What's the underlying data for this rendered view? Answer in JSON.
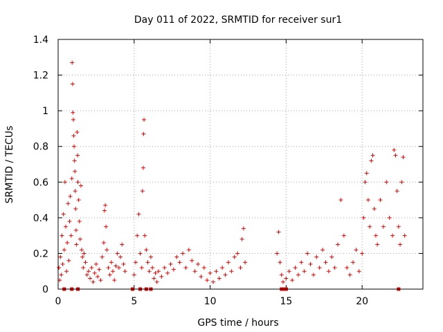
{
  "chart_data": {
    "type": "scatter",
    "title": "Day 011 of 2022, SRMTID for receiver sur1",
    "xlabel": "GPS time / hours",
    "ylabel": "SRMTID / TECUs",
    "xlim": [
      0,
      24
    ],
    "ylim": [
      0,
      1.4
    ],
    "xticks": [
      0,
      5,
      10,
      15,
      20
    ],
    "yticks": [
      0,
      0.2,
      0.4,
      0.6,
      0.8,
      1,
      1.2,
      1.4
    ],
    "xtick_labels": [
      "0",
      "5",
      "10",
      "15",
      "20"
    ],
    "ytick_labels": [
      "0",
      "0.2",
      "0.4",
      "0.6",
      "0.8",
      "1",
      "1.2",
      "1.4"
    ],
    "grid": true,
    "marker": "+",
    "color": "#e00000",
    "series": [
      {
        "name": "SRMTID",
        "points": [
          [
            0.05,
            0.12
          ],
          [
            0.1,
            0.05
          ],
          [
            0.15,
            0.18
          ],
          [
            0.2,
            0.08
          ],
          [
            0.25,
            0.3
          ],
          [
            0.3,
            0.14
          ],
          [
            0.35,
            0.42
          ],
          [
            0.4,
            0.22
          ],
          [
            0.45,
            0.6
          ],
          [
            0.5,
            0.35
          ],
          [
            0.55,
            0.1
          ],
          [
            0.6,
            0.26
          ],
          [
            0.65,
            0.48
          ],
          [
            0.7,
            0.16
          ],
          [
            0.75,
            0.38
          ],
          [
            0.8,
            0.52
          ],
          [
            0.85,
            0.3
          ],
          [
            0.9,
            0.62
          ],
          [
            0.92,
            1.27
          ],
          [
            0.95,
            1.15
          ],
          [
            0.97,
            0.99
          ],
          [
            1.0,
            0.95
          ],
          [
            1.02,
            0.86
          ],
          [
            1.05,
            0.8
          ],
          [
            1.08,
            0.72
          ],
          [
            1.1,
            0.66
          ],
          [
            1.12,
            0.55
          ],
          [
            1.15,
            0.45
          ],
          [
            1.18,
            0.33
          ],
          [
            1.2,
            0.25
          ],
          [
            1.25,
            0.88
          ],
          [
            1.28,
            0.75
          ],
          [
            1.3,
            0.6
          ],
          [
            1.35,
            0.5
          ],
          [
            1.4,
            0.38
          ],
          [
            1.45,
            0.28
          ],
          [
            1.5,
            0.58
          ],
          [
            1.55,
            0.22
          ],
          [
            1.6,
            0.18
          ],
          [
            1.65,
            0.12
          ],
          [
            1.7,
            0.2
          ],
          [
            1.8,
            0.15
          ],
          [
            1.9,
            0.08
          ],
          [
            2.0,
            0.1
          ],
          [
            2.1,
            0.06
          ],
          [
            2.2,
            0.12
          ],
          [
            2.3,
            0.04
          ],
          [
            2.4,
            0.09
          ],
          [
            2.5,
            0.14
          ],
          [
            2.6,
            0.07
          ],
          [
            2.7,
            0.11
          ],
          [
            2.8,
            0.05
          ],
          [
            2.9,
            0.18
          ],
          [
            3.0,
            0.26
          ],
          [
            3.05,
            0.44
          ],
          [
            3.1,
            0.47
          ],
          [
            3.15,
            0.35
          ],
          [
            3.2,
            0.22
          ],
          [
            3.3,
            0.12
          ],
          [
            3.4,
            0.08
          ],
          [
            3.5,
            0.15
          ],
          [
            3.6,
            0.1
          ],
          [
            3.7,
            0.05
          ],
          [
            3.8,
            0.13
          ],
          [
            3.9,
            0.2
          ],
          [
            4.0,
            0.12
          ],
          [
            4.1,
            0.18
          ],
          [
            4.2,
            0.25
          ],
          [
            4.3,
            0.14
          ],
          [
            4.4,
            0.1
          ],
          [
            5.0,
            0.08
          ],
          [
            5.1,
            0.15
          ],
          [
            5.2,
            0.3
          ],
          [
            5.3,
            0.42
          ],
          [
            5.4,
            0.2
          ],
          [
            5.5,
            0.12
          ],
          [
            5.55,
            0.55
          ],
          [
            5.6,
            0.68
          ],
          [
            5.62,
            0.87
          ],
          [
            5.65,
            0.95
          ],
          [
            5.7,
            0.3
          ],
          [
            5.8,
            0.22
          ],
          [
            5.9,
            0.15
          ],
          [
            6.0,
            0.1
          ],
          [
            6.1,
            0.18
          ],
          [
            6.2,
            0.12
          ],
          [
            6.3,
            0.06
          ],
          [
            6.4,
            0.09
          ],
          [
            6.5,
            0.04
          ],
          [
            6.6,
            0.1
          ],
          [
            6.8,
            0.07
          ],
          [
            7.0,
            0.12
          ],
          [
            7.2,
            0.09
          ],
          [
            7.4,
            0.14
          ],
          [
            7.6,
            0.11
          ],
          [
            7.8,
            0.18
          ],
          [
            8.0,
            0.15
          ],
          [
            8.2,
            0.2
          ],
          [
            8.4,
            0.12
          ],
          [
            8.6,
            0.22
          ],
          [
            8.8,
            0.16
          ],
          [
            9.0,
            0.1
          ],
          [
            9.2,
            0.14
          ],
          [
            9.4,
            0.07
          ],
          [
            9.6,
            0.12
          ],
          [
            9.8,
            0.05
          ],
          [
            10.0,
            0.09
          ],
          [
            10.2,
            0.04
          ],
          [
            10.4,
            0.1
          ],
          [
            10.6,
            0.06
          ],
          [
            10.8,
            0.12
          ],
          [
            11.0,
            0.08
          ],
          [
            11.2,
            0.15
          ],
          [
            11.4,
            0.1
          ],
          [
            11.6,
            0.18
          ],
          [
            11.8,
            0.2
          ],
          [
            12.0,
            0.12
          ],
          [
            12.1,
            0.28
          ],
          [
            12.2,
            0.34
          ],
          [
            12.3,
            0.15
          ],
          [
            14.4,
            0.2
          ],
          [
            14.5,
            0.32
          ],
          [
            14.6,
            0.15
          ],
          [
            14.7,
            0.08
          ],
          [
            14.8,
            0.04
          ],
          [
            15.0,
            0.06
          ],
          [
            15.2,
            0.1
          ],
          [
            15.4,
            0.05
          ],
          [
            15.6,
            0.12
          ],
          [
            15.8,
            0.08
          ],
          [
            16.0,
            0.15
          ],
          [
            16.2,
            0.1
          ],
          [
            16.4,
            0.2
          ],
          [
            16.6,
            0.14
          ],
          [
            16.8,
            0.08
          ],
          [
            17.0,
            0.18
          ],
          [
            17.2,
            0.12
          ],
          [
            17.4,
            0.22
          ],
          [
            17.6,
            0.15
          ],
          [
            17.8,
            0.1
          ],
          [
            18.0,
            0.18
          ],
          [
            18.2,
            0.12
          ],
          [
            18.4,
            0.25
          ],
          [
            18.6,
            0.5
          ],
          [
            18.8,
            0.3
          ],
          [
            19.0,
            0.12
          ],
          [
            19.2,
            0.08
          ],
          [
            19.4,
            0.15
          ],
          [
            19.6,
            0.22
          ],
          [
            19.8,
            0.1
          ],
          [
            20.0,
            0.2
          ],
          [
            20.1,
            0.4
          ],
          [
            20.2,
            0.6
          ],
          [
            20.3,
            0.65
          ],
          [
            20.4,
            0.5
          ],
          [
            20.5,
            0.35
          ],
          [
            20.6,
            0.72
          ],
          [
            20.7,
            0.75
          ],
          [
            20.8,
            0.45
          ],
          [
            20.9,
            0.3
          ],
          [
            21.0,
            0.25
          ],
          [
            21.2,
            0.5
          ],
          [
            21.4,
            0.35
          ],
          [
            21.6,
            0.6
          ],
          [
            21.8,
            0.4
          ],
          [
            22.0,
            0.3
          ],
          [
            22.1,
            0.78
          ],
          [
            22.2,
            0.75
          ],
          [
            22.3,
            0.55
          ],
          [
            22.4,
            0.35
          ],
          [
            22.5,
            0.25
          ],
          [
            22.6,
            0.6
          ],
          [
            22.7,
            0.74
          ],
          [
            22.8,
            0.3
          ]
        ],
        "zeros": [
          0.4,
          0.9,
          1.3,
          4.9,
          5.4,
          5.8,
          6.1,
          14.7,
          14.85,
          15.0,
          22.4
        ]
      }
    ]
  }
}
